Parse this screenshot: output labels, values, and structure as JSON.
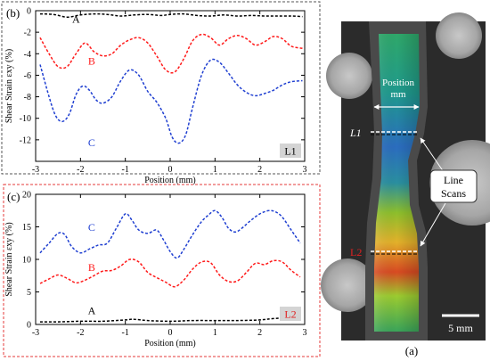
{
  "figure": {
    "panel_b_label": "(b)",
    "panel_c_label": "(c)",
    "panel_a_label": "(a)",
    "photo": {
      "position_label_line1": "Position",
      "position_label_line2": "mm",
      "scan_line_1_label": "L1",
      "scan_line_2_label": "L2",
      "callout_line1": "Line",
      "callout_line2": "Scans",
      "scale_bar_label": "5 mm"
    }
  },
  "colors": {
    "series_A": "#000000",
    "series_B": "#ff1a1a",
    "series_C": "#1f3fd1",
    "panel_b_frame": "#555555",
    "panel_c_frame": "#e63a3a",
    "tag_background": "#d4d4d4",
    "L2_text": "#e02020"
  },
  "chart_data": [
    {
      "type": "line",
      "panel": "b",
      "ylabel": "Shear Strain εxy (%)",
      "xlabel": "Position (mm)",
      "xlim": [
        -3,
        3
      ],
      "ylim": [
        -14,
        0
      ],
      "xticks": [
        -3,
        -2,
        -1,
        0,
        1,
        2,
        3
      ],
      "yticks": [
        0,
        -2,
        -4,
        -6,
        -8,
        -10,
        -12
      ],
      "tag": "L1",
      "series": [
        {
          "name": "A",
          "x": [
            -2.9,
            -2.6,
            -2.3,
            -2.0,
            -1.7,
            -1.4,
            -1.1,
            -0.8,
            -0.5,
            -0.2,
            0.0,
            0.3,
            0.6,
            0.9,
            1.2,
            1.5,
            1.8,
            2.1,
            2.4,
            2.7,
            2.95
          ],
          "y": [
            -0.3,
            -0.35,
            -0.6,
            -0.4,
            -0.3,
            -0.35,
            -0.5,
            -0.4,
            -0.35,
            -0.45,
            -0.35,
            -0.3,
            -0.45,
            -0.5,
            -0.4,
            -0.5,
            -0.45,
            -0.5,
            -0.5,
            -0.5,
            -0.55
          ]
        },
        {
          "name": "B",
          "x": [
            -2.9,
            -2.7,
            -2.5,
            -2.3,
            -2.1,
            -1.9,
            -1.7,
            -1.5,
            -1.3,
            -1.1,
            -0.9,
            -0.7,
            -0.5,
            -0.3,
            -0.1,
            0.1,
            0.3,
            0.5,
            0.7,
            0.9,
            1.1,
            1.3,
            1.5,
            1.7,
            1.9,
            2.1,
            2.3,
            2.5,
            2.7,
            2.95
          ],
          "y": [
            -2.5,
            -4.0,
            -5.2,
            -5.2,
            -4.0,
            -3.0,
            -3.8,
            -4.2,
            -4.0,
            -3.2,
            -2.7,
            -2.5,
            -3.0,
            -4.2,
            -5.5,
            -5.7,
            -4.5,
            -2.8,
            -2.2,
            -2.5,
            -3.2,
            -2.6,
            -2.3,
            -2.6,
            -3.2,
            -2.9,
            -2.4,
            -2.6,
            -3.3,
            -3.5
          ]
        },
        {
          "name": "C",
          "x": [
            -2.9,
            -2.7,
            -2.55,
            -2.4,
            -2.25,
            -2.1,
            -1.95,
            -1.8,
            -1.65,
            -1.5,
            -1.3,
            -1.1,
            -0.9,
            -0.7,
            -0.5,
            -0.3,
            -0.1,
            0.05,
            0.2,
            0.35,
            0.5,
            0.7,
            0.9,
            1.1,
            1.3,
            1.5,
            1.7,
            1.9,
            2.1,
            2.3,
            2.5,
            2.7,
            2.95
          ],
          "y": [
            -5.0,
            -8.0,
            -9.8,
            -10.3,
            -9.6,
            -7.8,
            -7.0,
            -7.4,
            -8.3,
            -8.6,
            -8.0,
            -6.5,
            -5.5,
            -6.0,
            -7.5,
            -8.5,
            -10.0,
            -11.8,
            -12.3,
            -11.5,
            -9.0,
            -6.0,
            -4.6,
            -4.8,
            -5.8,
            -6.9,
            -7.6,
            -7.9,
            -7.7,
            -7.4,
            -6.9,
            -6.6,
            -6.5
          ]
        }
      ]
    },
    {
      "type": "line",
      "panel": "c",
      "ylabel": "Shear Strain εxy (%)",
      "xlabel": "Position (mm)",
      "xlim": [
        -3,
        3
      ],
      "ylim": [
        0,
        20
      ],
      "xticks": [
        -3,
        -2,
        -1,
        0,
        1,
        2,
        3
      ],
      "yticks": [
        0,
        5,
        10,
        15,
        20
      ],
      "tag": "L2",
      "series": [
        {
          "name": "A",
          "x": [
            -2.9,
            -2.5,
            -2.0,
            -1.5,
            -1.0,
            -0.8,
            -0.5,
            0.0,
            0.5,
            1.0,
            1.5,
            2.0,
            2.3,
            2.6,
            2.9
          ],
          "y": [
            0.4,
            0.4,
            0.5,
            0.5,
            0.7,
            0.8,
            0.6,
            0.5,
            0.6,
            0.6,
            0.6,
            0.7,
            0.9,
            1.0,
            1.0
          ]
        },
        {
          "name": "B",
          "x": [
            -2.9,
            -2.7,
            -2.5,
            -2.3,
            -2.1,
            -1.9,
            -1.7,
            -1.5,
            -1.3,
            -1.1,
            -0.9,
            -0.7,
            -0.5,
            -0.3,
            -0.1,
            0.1,
            0.3,
            0.5,
            0.7,
            0.9,
            1.1,
            1.3,
            1.5,
            1.7,
            1.9,
            2.1,
            2.3,
            2.5,
            2.7,
            2.9
          ],
          "y": [
            6.3,
            7.0,
            7.6,
            7.1,
            6.4,
            6.8,
            7.5,
            8.2,
            8.3,
            9.0,
            10.0,
            9.6,
            8.0,
            7.2,
            6.5,
            5.8,
            6.8,
            8.5,
            9.6,
            9.5,
            7.6,
            6.6,
            6.7,
            8.0,
            9.4,
            9.2,
            9.8,
            9.6,
            8.3,
            7.3
          ]
        },
        {
          "name": "C",
          "x": [
            -2.9,
            -2.7,
            -2.5,
            -2.35,
            -2.2,
            -2.0,
            -1.8,
            -1.6,
            -1.4,
            -1.2,
            -1.0,
            -0.85,
            -0.7,
            -0.5,
            -0.3,
            -0.15,
            0.0,
            0.15,
            0.3,
            0.5,
            0.7,
            0.85,
            1.0,
            1.15,
            1.3,
            1.45,
            1.6,
            1.8,
            2.0,
            2.2,
            2.35,
            2.5,
            2.7,
            2.9
          ],
          "y": [
            11.0,
            12.5,
            14.0,
            13.8,
            12.0,
            11.0,
            11.6,
            12.2,
            12.5,
            14.8,
            17.0,
            16.0,
            14.5,
            14.0,
            14.5,
            13.0,
            11.2,
            10.2,
            11.5,
            13.8,
            15.8,
            16.8,
            17.5,
            16.5,
            14.8,
            14.2,
            14.8,
            16.0,
            17.0,
            17.5,
            17.3,
            16.5,
            14.5,
            12.5
          ]
        }
      ]
    }
  ]
}
